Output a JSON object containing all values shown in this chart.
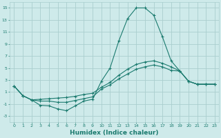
{
  "x": [
    0,
    1,
    2,
    3,
    4,
    5,
    6,
    7,
    8,
    9,
    10,
    11,
    12,
    13,
    14,
    15,
    16,
    17,
    18,
    19,
    20,
    21,
    22,
    23
  ],
  "line1": [
    2.0,
    0.4,
    -0.3,
    -1.2,
    -1.3,
    -1.8,
    -2.1,
    -1.3,
    -0.5,
    -0.2,
    2.8,
    5.0,
    9.5,
    13.2,
    15.0,
    15.0,
    13.8,
    10.2,
    6.2,
    4.5,
    2.8,
    2.3,
    2.3,
    2.3
  ],
  "line2": [
    2.0,
    0.4,
    -0.3,
    -0.5,
    -0.5,
    -0.7,
    -0.7,
    -0.4,
    -0.1,
    0.2,
    1.5,
    2.2,
    3.2,
    4.0,
    4.8,
    5.2,
    5.5,
    5.2,
    4.6,
    4.5,
    2.8,
    2.3,
    2.3,
    2.3
  ],
  "line3": [
    2.0,
    0.4,
    -0.3,
    -0.2,
    -0.1,
    0.0,
    0.1,
    0.3,
    0.6,
    0.8,
    1.8,
    2.6,
    3.8,
    4.8,
    5.6,
    6.0,
    6.2,
    5.8,
    5.2,
    4.5,
    2.8,
    2.3,
    2.3,
    2.3
  ],
  "color": "#1a7a6e",
  "bg_color": "#ceeaea",
  "grid_color": "#aacece",
  "xlabel": "Humidex (Indice chaleur)",
  "yticks": [
    -3,
    -1,
    1,
    3,
    5,
    7,
    9,
    11,
    13,
    15
  ],
  "xticks": [
    0,
    1,
    2,
    3,
    4,
    5,
    6,
    7,
    8,
    9,
    10,
    11,
    12,
    13,
    14,
    15,
    16,
    17,
    18,
    19,
    20,
    21,
    22,
    23
  ],
  "ylim": [
    -4,
    16
  ],
  "xlim": [
    -0.5,
    23.5
  ]
}
